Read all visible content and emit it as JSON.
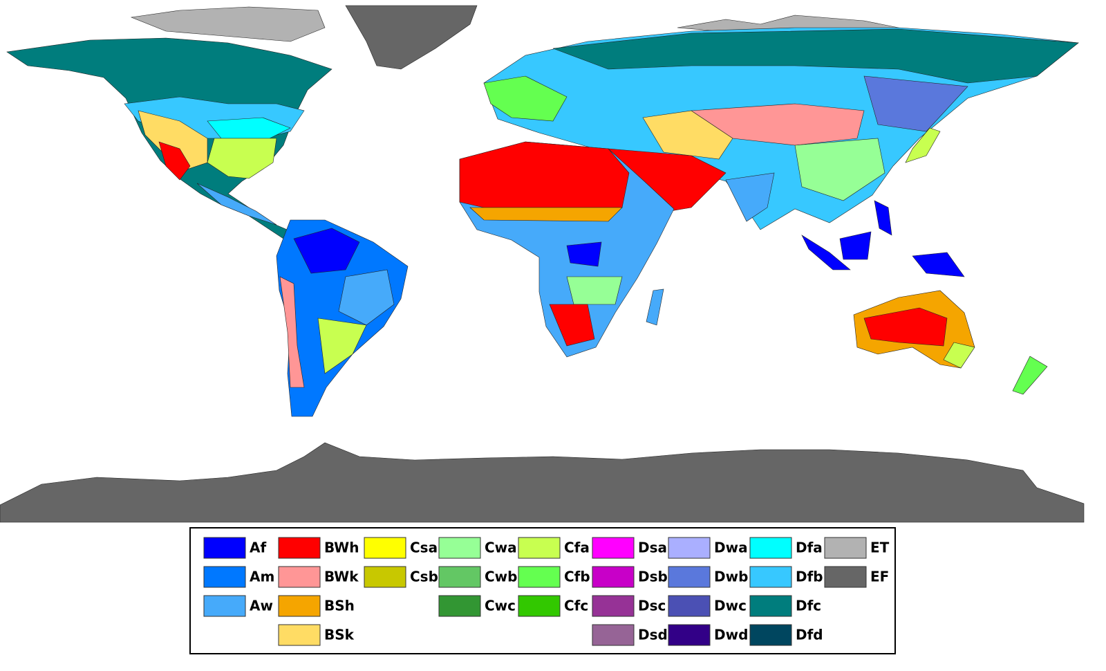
{
  "legend": {
    "columns": [
      [
        {
          "label": "Af",
          "color": "#0000fe"
        },
        {
          "label": "Am",
          "color": "#0078ff"
        },
        {
          "label": "Aw",
          "color": "#46aafa"
        }
      ],
      [
        {
          "label": "BWh",
          "color": "#ff0000"
        },
        {
          "label": "BWk",
          "color": "#ff9696"
        },
        {
          "label": "BSh",
          "color": "#f5a500"
        },
        {
          "label": "BSk",
          "color": "#ffdc64"
        }
      ],
      [
        {
          "label": "Csa",
          "color": "#ffff00"
        },
        {
          "label": "Csb",
          "color": "#c8c800"
        }
      ],
      [
        {
          "label": "Cwa",
          "color": "#96ff96"
        },
        {
          "label": "Cwb",
          "color": "#63c764"
        },
        {
          "label": "Cwc",
          "color": "#329633"
        }
      ],
      [
        {
          "label": "Cfa",
          "color": "#c8ff50"
        },
        {
          "label": "Cfb",
          "color": "#64ff50"
        },
        {
          "label": "Cfc",
          "color": "#32c800"
        }
      ],
      [
        {
          "label": "Dsa",
          "color": "#ff00ff"
        },
        {
          "label": "Dsb",
          "color": "#c800c8"
        },
        {
          "label": "Dsc",
          "color": "#963296"
        },
        {
          "label": "Dsd",
          "color": "#966496"
        }
      ],
      [
        {
          "label": "Dwa",
          "color": "#aaafff"
        },
        {
          "label": "Dwb",
          "color": "#5a78dc"
        },
        {
          "label": "Dwc",
          "color": "#4b50b4"
        },
        {
          "label": "Dwd",
          "color": "#320087"
        }
      ],
      [
        {
          "label": "Dfa",
          "color": "#00ffff"
        },
        {
          "label": "Dfb",
          "color": "#37c8ff"
        },
        {
          "label": "Dfc",
          "color": "#007d7d"
        },
        {
          "label": "Dfd",
          "color": "#00465f"
        }
      ],
      [
        {
          "label": "ET",
          "color": "#b2b2b2"
        },
        {
          "label": "EF",
          "color": "#666666"
        }
      ]
    ]
  }
}
